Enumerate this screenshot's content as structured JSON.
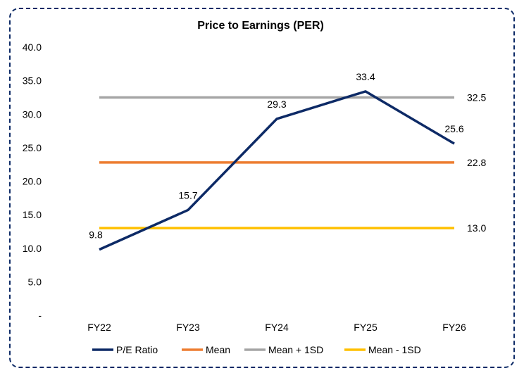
{
  "chart_data": {
    "type": "line",
    "title": "Price to Earnings (PER)",
    "categories": [
      "FY22",
      "FY23",
      "FY24",
      "FY25",
      "FY26"
    ],
    "ylim": [
      0,
      40
    ],
    "yticks": [
      "-",
      "5.0",
      "10.0",
      "15.0",
      "20.0",
      "25.0",
      "30.0",
      "35.0",
      "40.0"
    ],
    "grid": false,
    "legend_position": "bottom",
    "series": [
      {
        "name": "P/E Ratio",
        "color": "#0d2a66",
        "values": [
          9.8,
          15.7,
          29.3,
          33.4,
          25.6
        ],
        "labels": [
          "9.8",
          "15.7",
          "29.3",
          "33.4",
          "25.6"
        ]
      },
      {
        "name": "Mean",
        "color": "#ed7d31",
        "values": [
          22.8,
          22.8,
          22.8,
          22.8,
          22.8
        ],
        "end_label": "22.8"
      },
      {
        "name": "Mean + 1SD",
        "color": "#a5a5a5",
        "values": [
          32.5,
          32.5,
          32.5,
          32.5,
          32.5
        ],
        "end_label": "32.5"
      },
      {
        "name": "Mean - 1SD",
        "color": "#ffc000",
        "values": [
          13.0,
          13.0,
          13.0,
          13.0,
          13.0
        ],
        "end_label": "13.0"
      }
    ]
  }
}
